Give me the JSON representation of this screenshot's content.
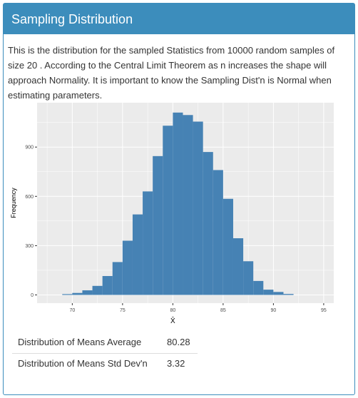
{
  "panel": {
    "title": "Sampling Distribution",
    "description": "This is the distribution for the sampled Statistics from 10000 random samples of size 20 . According to the Central Limit Theorem as n increases the shape will approach Normality. It is important to know the Sampling Dist'n is Normal when estimating parameters."
  },
  "colors": {
    "header": "#3c8dbc",
    "bar": "#4682b4",
    "plot_bg": "#ebebeb",
    "grid": "#ffffff"
  },
  "chart_data": {
    "type": "bar",
    "title": "",
    "xlabel": "X̄",
    "ylabel": "Frequency",
    "xlim": [
      66.5,
      96
    ],
    "ylim": [
      -50,
      1170
    ],
    "xticks": [
      70,
      75,
      80,
      85,
      90,
      95
    ],
    "yticks": [
      0,
      300,
      600,
      900
    ],
    "bin_width": 1,
    "bin_starts": [
      69,
      70,
      71,
      72,
      73,
      74,
      75,
      76,
      77,
      78,
      79,
      80,
      81,
      82,
      83,
      84,
      85,
      86,
      87,
      88,
      89,
      90,
      91
    ],
    "values": [
      5,
      12,
      28,
      55,
      115,
      200,
      330,
      490,
      630,
      845,
      1030,
      1110,
      1095,
      1055,
      870,
      760,
      585,
      345,
      205,
      85,
      32,
      18,
      6
    ],
    "grid": true
  },
  "stats": [
    {
      "label": "Distribution of Means Average",
      "value": "80.28"
    },
    {
      "label": "Distribution of Means Std Dev'n",
      "value": "3.32"
    }
  ]
}
